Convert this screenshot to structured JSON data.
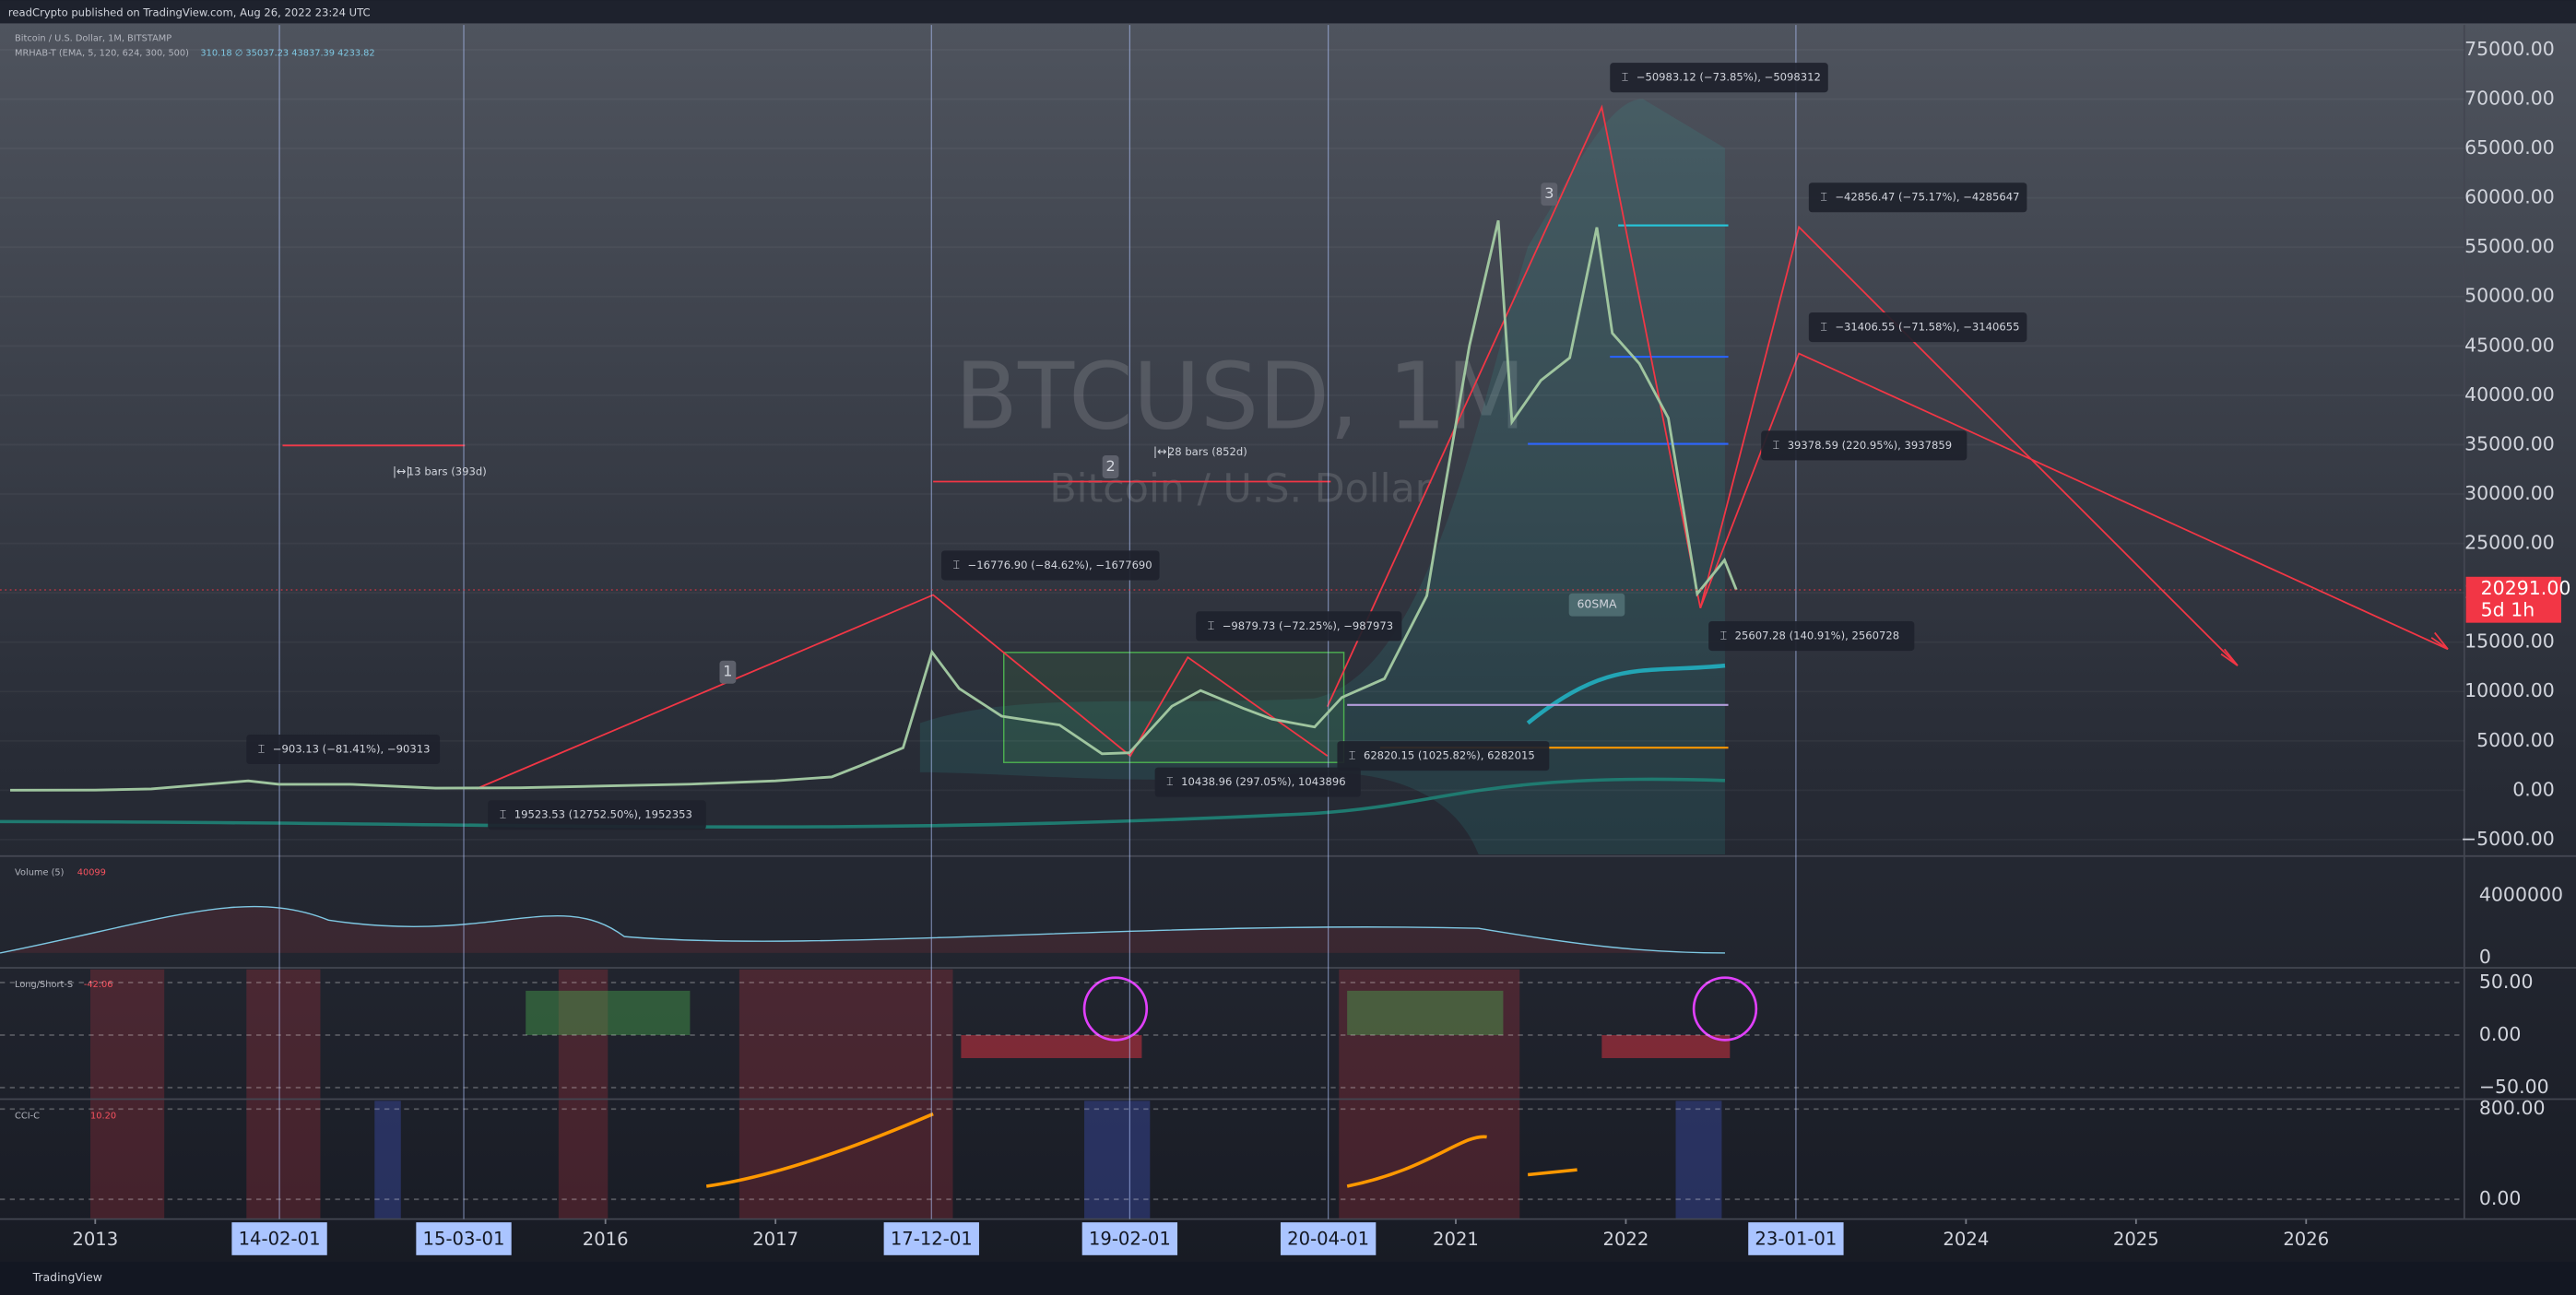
{
  "header": {
    "publisher": "readCrypto published on TradingView.com, Aug 26, 2022 23:24 UTC",
    "symbol": "Bitcoin / U.S. Dollar, 1M, BITSTAMP",
    "indicator": "MRHAB-T (EMA, 5, 120, 624, 300, 500)",
    "indicator_values": "310.18 ∅ 35037.23 43837.39 4233.82"
  },
  "watermark": {
    "symbol": "BTCUSD, 1M",
    "name": "Bitcoin / U.S. Dollar"
  },
  "chart_data": {
    "type": "line",
    "color": "#9fc59f",
    "x": [
      2012.5,
      2013.0,
      2013.33,
      2013.9,
      2014.08,
      2014.5,
      2015.0,
      2015.5,
      2016.0,
      2016.5,
      2017.0,
      2017.33,
      2017.5,
      2017.75,
      2017.92,
      2018.08,
      2018.33,
      2018.67,
      2018.92,
      2019.08,
      2019.33,
      2019.5,
      2019.75,
      2019.92,
      2020.17,
      2020.33,
      2020.58,
      2020.83,
      2020.92,
      2021.08,
      2021.25,
      2021.33,
      2021.5,
      2021.67,
      2021.83,
      2021.92,
      2022.08,
      2022.25,
      2022.42,
      2022.58,
      2022.65
    ],
    "values": [
      7,
      13,
      140,
      950,
      600,
      600,
      220,
      260,
      430,
      620,
      960,
      1350,
      2500,
      4300,
      14000,
      10300,
      7500,
      6600,
      3700,
      3800,
      8500,
      10100,
      8300,
      7200,
      6400,
      9400,
      11300,
      19700,
      29000,
      45000,
      57700,
      37300,
      41500,
      43800,
      57000,
      46300,
      43200,
      37700,
      19900,
      23300,
      20291
    ],
    "xlim": [
      2012.44,
      2026.93
    ],
    "ylim": [
      -6500,
      77500
    ],
    "yticks": [
      {
        "value": -5000,
        "label": "−5000.00"
      },
      {
        "value": 0,
        "label": "0.00"
      },
      {
        "value": 5000,
        "label": "5000.00"
      },
      {
        "value": 10000,
        "label": "10000.00"
      },
      {
        "value": 15000,
        "label": "15000.00"
      },
      {
        "value": 20000,
        "label": "20000.00"
      },
      {
        "value": 25000,
        "label": "25000.00"
      },
      {
        "value": 30000,
        "label": "30000.00"
      },
      {
        "value": 35000,
        "label": "35000.00"
      },
      {
        "value": 40000,
        "label": "40000.00"
      },
      {
        "value": 45000,
        "label": "45000.00"
      },
      {
        "value": 50000,
        "label": "50000.00"
      },
      {
        "value": 55000,
        "label": "55000.00"
      },
      {
        "value": 60000,
        "label": "60000.00"
      },
      {
        "value": 65000,
        "label": "65000.00"
      },
      {
        "value": 70000,
        "label": "70000.00"
      },
      {
        "value": 75000,
        "label": "75000.00"
      }
    ],
    "xticks": [
      2013,
      2016,
      2017,
      2021,
      2022,
      2024,
      2025,
      2026
    ],
    "date_markers": [
      {
        "value": 2014.083,
        "label": "14-02-01"
      },
      {
        "value": 2015.167,
        "label": "15-03-01"
      },
      {
        "value": 2017.917,
        "label": "17-12-01"
      },
      {
        "value": 2019.083,
        "label": "19-02-01"
      },
      {
        "value": 2020.25,
        "label": "20-04-01"
      },
      {
        "value": 2023.0,
        "label": "23-01-01"
      }
    ],
    "last_price": {
      "value": 20291,
      "label": "20291.00"
    },
    "countdown": "5d 1h",
    "annotations": [
      "−50983.12 (−73.85%), −5098312",
      "−42856.47 (−75.17%), −4285647",
      "−31406.55 (−71.58%), −3140655",
      "39378.59 (220.95%), 3937859",
      "25607.28 (140.91%), 2560728",
      "−16776.90 (−84.62%), −1677690",
      "−9879.73 (−72.25%), −987973",
      "62820.15 (1025.82%), 6282015",
      "10438.96 (297.05%), 1043896",
      "−903.13 (−81.41%), −90313",
      "19523.53 (12752.50%), 1952353",
      "13 bars (393d)",
      "28 bars (852d)"
    ],
    "labels": [
      "1",
      "2",
      "3",
      "60SMA"
    ]
  },
  "panes": [
    {
      "title": "Volume (5)",
      "value": "40099",
      "ylim": [
        -530000,
        6420000
      ],
      "yticks": [
        4000000,
        0
      ]
    },
    {
      "title": "Long/Short-S",
      "value": "-42.06",
      "ylim": [
        -59.4,
        62.5
      ],
      "yticks": [
        {
          "value": 50,
          "label": "50.00"
        },
        {
          "value": 0,
          "label": "0.00"
        },
        {
          "value": -50,
          "label": "−50.00"
        }
      ]
    },
    {
      "title": "CCI-C",
      "value": "10.20",
      "ylim": [
        -175,
        873
      ],
      "yticks": [
        {
          "value": 800,
          "label": "800.00"
        },
        {
          "value": 0,
          "label": "0.00"
        }
      ]
    }
  ],
  "footer": "TradingView"
}
